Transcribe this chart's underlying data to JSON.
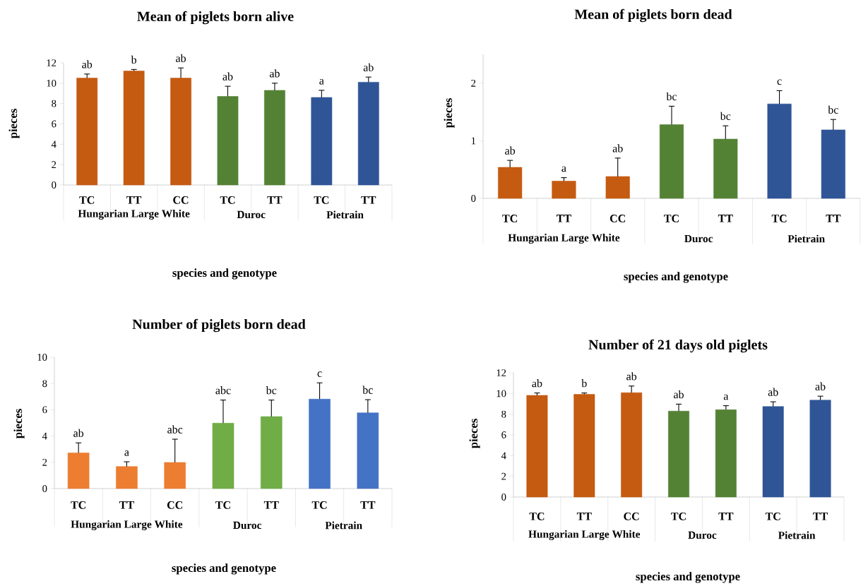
{
  "chart_data": [
    {
      "type": "bar",
      "title": "Mean of piglets born alive",
      "xlabel": "species and genotype",
      "ylabel": "pieces",
      "categories": [
        "TC",
        "TT",
        "CC",
        "TC",
        "TT",
        "TC",
        "TT"
      ],
      "values": [
        10.5,
        11.2,
        10.5,
        8.7,
        9.3,
        8.6,
        10.1
      ],
      "colors": [
        "#c55a11",
        "#c55a11",
        "#c55a11",
        "#548235",
        "#548235",
        "#2f5597",
        "#2f5597"
      ],
      "errors": [
        [
          10.5,
          10.9
        ],
        [
          11.2,
          11.35
        ],
        [
          10.5,
          11.5
        ],
        [
          8.7,
          9.7
        ],
        [
          9.3,
          10.0
        ],
        [
          8.6,
          9.3
        ],
        [
          10.1,
          10.6
        ]
      ],
      "value_labels": [
        "ab",
        "b",
        "ab",
        "ab",
        "ab",
        "a",
        "ab"
      ],
      "ylim": [
        0,
        12
      ],
      "yticks": [
        0,
        2,
        4,
        6,
        8,
        10,
        12
      ],
      "annotations": [
        "Hungarian Large White",
        "Duroc",
        "Pietrain"
      ]
    },
    {
      "type": "bar",
      "title": "Mean of piglets born dead",
      "xlabel": "species and genotype",
      "ylabel": "pieces",
      "categories": [
        "TC",
        "TT",
        "CC",
        "TC",
        "TT",
        "TC",
        "TT"
      ],
      "values": [
        0.54,
        0.3,
        0.38,
        1.28,
        1.03,
        1.64,
        1.19
      ],
      "colors": [
        "#c55a11",
        "#c55a11",
        "#c55a11",
        "#548235",
        "#548235",
        "#2f5597",
        "#2f5597"
      ],
      "errors": [
        [
          0.54,
          0.66
        ],
        [
          0.3,
          0.36
        ],
        [
          0.38,
          0.7
        ],
        [
          1.28,
          1.6
        ],
        [
          1.03,
          1.26
        ],
        [
          1.64,
          1.87
        ],
        [
          1.19,
          1.37
        ]
      ],
      "value_labels": [
        "ab",
        "a",
        "ab",
        "bc",
        "bc",
        "c",
        "bc"
      ],
      "ylim": [
        0,
        2.5
      ],
      "yticks": [
        0,
        1,
        2
      ],
      "annotations": [
        "Hungarian Large White",
        "Duroc",
        "Pietrain"
      ]
    },
    {
      "type": "bar",
      "title": "Number of piglets born dead",
      "xlabel": "species and genotype",
      "ylabel": "pieces",
      "categories": [
        "TC",
        "TT",
        "CC",
        "TC",
        "TT",
        "TC",
        "TT"
      ],
      "values": [
        2.72,
        1.68,
        1.99,
        4.98,
        5.48,
        6.81,
        5.77
      ],
      "colors": [
        "#ed7d31",
        "#ed7d31",
        "#ed7d31",
        "#70ad47",
        "#70ad47",
        "#4472c4",
        "#4472c4"
      ],
      "errors": [
        [
          2.72,
          3.48
        ],
        [
          1.68,
          2.04
        ],
        [
          1.99,
          3.76
        ],
        [
          4.98,
          6.74
        ],
        [
          5.48,
          6.74
        ],
        [
          6.81,
          8.05
        ],
        [
          5.77,
          6.77
        ]
      ],
      "value_labels": [
        "ab",
        "a",
        "abc",
        "abc",
        "bc",
        "c",
        "bc"
      ],
      "ylim": [
        0,
        10
      ],
      "yticks": [
        0,
        2,
        4,
        6,
        8,
        10
      ],
      "annotations": [
        "Hungarian Large White",
        "Duroc",
        "Pietrain"
      ]
    },
    {
      "type": "bar",
      "title": "Number of 21 days old piglets",
      "xlabel": "species and genotype",
      "ylabel": "pieces",
      "categories": [
        "TC",
        "TT",
        "CC",
        "TC",
        "TT",
        "TC",
        "TT"
      ],
      "values": [
        9.82,
        9.92,
        10.08,
        8.3,
        8.43,
        8.74,
        9.36
      ],
      "colors": [
        "#c55a11",
        "#c55a11",
        "#c55a11",
        "#548235",
        "#548235",
        "#2f5597",
        "#2f5597"
      ],
      "errors": [
        [
          9.82,
          10.05
        ],
        [
          9.92,
          10.05
        ],
        [
          10.08,
          10.72
        ],
        [
          8.3,
          8.97
        ],
        [
          8.43,
          8.82
        ],
        [
          8.74,
          9.2
        ],
        [
          9.36,
          9.74
        ]
      ],
      "value_labels": [
        "ab",
        "b",
        "ab",
        "ab",
        "a",
        "ab",
        "ab"
      ],
      "ylim": [
        0,
        12
      ],
      "yticks": [
        0,
        2,
        4,
        6,
        8,
        10,
        12
      ],
      "annotations": [
        "Hungarian Large White",
        "Duroc",
        "Pietrain"
      ]
    }
  ]
}
